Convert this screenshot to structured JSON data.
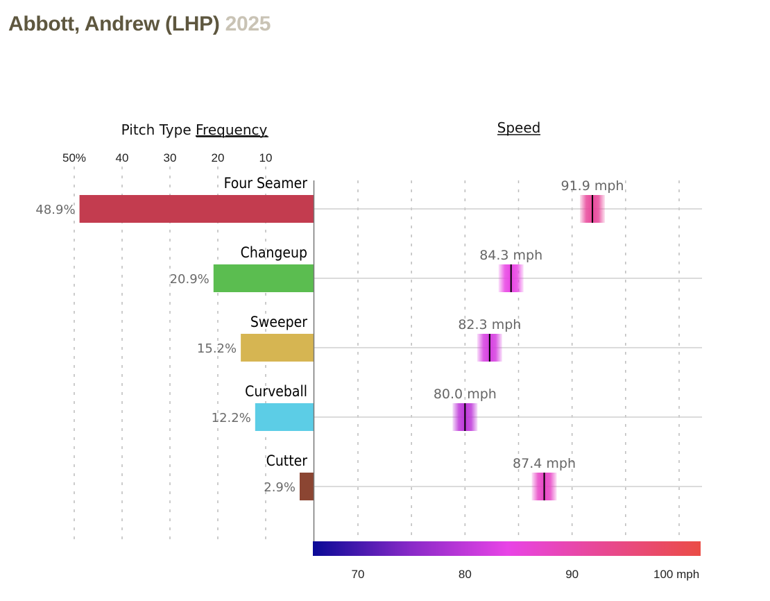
{
  "header": {
    "player": "Abbott, Andrew (LHP)",
    "year": "2025"
  },
  "chart_data": [
    {
      "type": "bar",
      "title_prefix": "Pitch Type ",
      "title_link": "Frequency",
      "orientation": "horizontal-left",
      "xlim": [
        0,
        50
      ],
      "tick_values": [
        50,
        40,
        30,
        20,
        10
      ],
      "tick_labels": [
        "50%",
        "40",
        "30",
        "20",
        "10"
      ],
      "grid": true,
      "categories": [
        "Four Seamer",
        "Changeup",
        "Sweeper",
        "Curveball",
        "Cutter"
      ],
      "values": [
        48.9,
        20.9,
        15.2,
        12.2,
        2.9
      ],
      "labels": [
        "48.9%",
        "20.9%",
        "15.2%",
        "12.2%",
        "2.9%"
      ],
      "colors": [
        "#c33c4f",
        "#5bbd50",
        "#d6b552",
        "#5ccde6",
        "#8b4532"
      ]
    },
    {
      "type": "scatter",
      "title_link": "Speed",
      "xlim": [
        65.8,
        102
      ],
      "grid_values": [
        70,
        75,
        80,
        85,
        90,
        95,
        100
      ],
      "tick_values": [
        70,
        80,
        90,
        100
      ],
      "tick_labels": [
        "70",
        "80",
        "90",
        "100 mph"
      ],
      "categories": [
        "Four Seamer",
        "Changeup",
        "Sweeper",
        "Curveball",
        "Cutter"
      ],
      "values": [
        91.9,
        84.3,
        82.3,
        80.0,
        87.4
      ],
      "labels": [
        "91.9 mph",
        "84.3 mph",
        "82.3 mph",
        "80.0 mph",
        "87.4 mph"
      ],
      "colorscale": {
        "range": [
          65.8,
          102
        ],
        "stops": [
          {
            "value": 65.8,
            "color": "#0a0a96"
          },
          {
            "value": 75,
            "color": "#8a2ac8"
          },
          {
            "value": 84,
            "color": "#e844e6"
          },
          {
            "value": 92,
            "color": "#e8489a"
          },
          {
            "value": 102,
            "color": "#ea4c46"
          }
        ]
      }
    }
  ]
}
